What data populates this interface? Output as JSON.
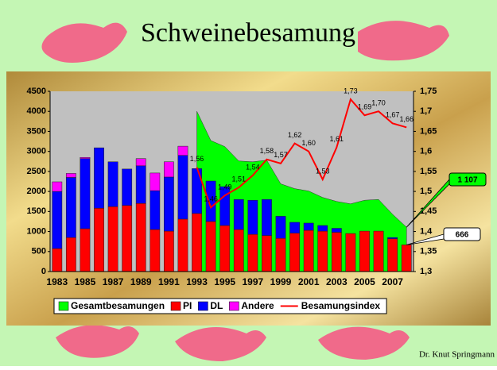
{
  "chart_data": {
    "type": "bar",
    "title": "Schweinebesamung",
    "categories": [
      "1983",
      null,
      "1985",
      null,
      "1987",
      null,
      "1989",
      null,
      "1991",
      null,
      "1993",
      null,
      "1995",
      null,
      "1997",
      null,
      "1999",
      null,
      "2001",
      null,
      "2003",
      null,
      "2005",
      null,
      "2007",
      null
    ],
    "series": [
      {
        "name": "Gesamtbesamungen",
        "type": "area",
        "color": "#00ff00",
        "values": [
          null,
          null,
          null,
          null,
          null,
          null,
          null,
          null,
          null,
          null,
          4000,
          3270,
          3120,
          2760,
          2740,
          2780,
          2190,
          2070,
          2010,
          1850,
          1750,
          1690,
          1780,
          1800,
          1430,
          1107
        ],
        "value_labels": [
          null,
          null,
          null,
          null,
          null,
          null,
          null,
          null,
          null,
          null,
          null,
          null,
          null,
          null,
          null,
          null,
          null,
          null,
          null,
          null,
          null,
          null,
          null,
          null,
          null,
          "1 107"
        ]
      },
      {
        "name": "PI",
        "type": "bar",
        "color": "#ff0000",
        "values": [
          575,
          850,
          1070,
          1580,
          1620,
          1650,
          1700,
          1050,
          1010,
          1310,
          1450,
          1250,
          1150,
          1050,
          930,
          900,
          830,
          960,
          1030,
          1010,
          980,
          950,
          1010,
          1010,
          820,
          666
        ],
        "value_labels": [
          null,
          null,
          null,
          null,
          null,
          null,
          null,
          null,
          null,
          null,
          null,
          null,
          null,
          null,
          null,
          null,
          null,
          null,
          null,
          null,
          null,
          null,
          null,
          null,
          null,
          "666"
        ]
      },
      {
        "name": "DL",
        "type": "bar",
        "color": "#0000ff",
        "values": [
          1425,
          1500,
          1750,
          1510,
          1120,
          910,
          940,
          970,
          1350,
          1590,
          1120,
          1010,
          970,
          750,
          850,
          900,
          550,
          270,
          180,
          140,
          100,
          0,
          0,
          0,
          30,
          0
        ]
      },
      {
        "name": "Andere",
        "type": "bar",
        "color": "#ff00ff",
        "values": [
          240,
          100,
          30,
          0,
          0,
          0,
          180,
          440,
          380,
          230,
          0,
          0,
          0,
          0,
          0,
          0,
          0,
          0,
          0,
          0,
          0,
          0,
          0,
          0,
          0,
          0
        ]
      },
      {
        "name": "Besamungsindex",
        "type": "line",
        "color": "#ff0000",
        "axis": "y2",
        "values": [
          null,
          null,
          null,
          null,
          null,
          null,
          null,
          null,
          null,
          null,
          1.56,
          1.46,
          1.49,
          1.51,
          1.54,
          1.58,
          1.57,
          1.62,
          1.6,
          1.53,
          1.61,
          1.73,
          1.69,
          1.7,
          1.67,
          1.66
        ],
        "value_labels": [
          null,
          null,
          null,
          null,
          null,
          null,
          null,
          null,
          null,
          null,
          "1,56",
          "1,46",
          "1,49",
          "1,51",
          "1,54",
          "1,58",
          "1,57",
          "1,62",
          "1,60",
          "1,53",
          "1,61",
          "1,73",
          "1,69",
          "1,70",
          "1,67",
          "1,66"
        ]
      }
    ],
    "ylim": [
      0,
      4500
    ],
    "yticks": [
      0,
      500,
      1000,
      1500,
      2000,
      2500,
      3000,
      3500,
      4000,
      4500
    ],
    "y2lim": [
      1.3,
      1.75
    ],
    "y2ticks": [
      {
        "value": 1.3,
        "label": "1,3"
      },
      {
        "value": 1.35,
        "label": "1,35"
      },
      {
        "value": 1.4,
        "label": "1,4"
      },
      {
        "value": 1.45,
        "label": "1,45"
      },
      {
        "value": 1.5,
        "label": "1,5"
      },
      {
        "value": 1.55,
        "label": "1,55"
      },
      {
        "value": 1.6,
        "label": "1,6"
      },
      {
        "value": 1.65,
        "label": "1,65"
      },
      {
        "value": 1.7,
        "label": "1,7"
      },
      {
        "value": 1.75,
        "label": "1,75"
      }
    ],
    "legend": "bottom"
  },
  "footer": "Dr. Knut Springmann"
}
